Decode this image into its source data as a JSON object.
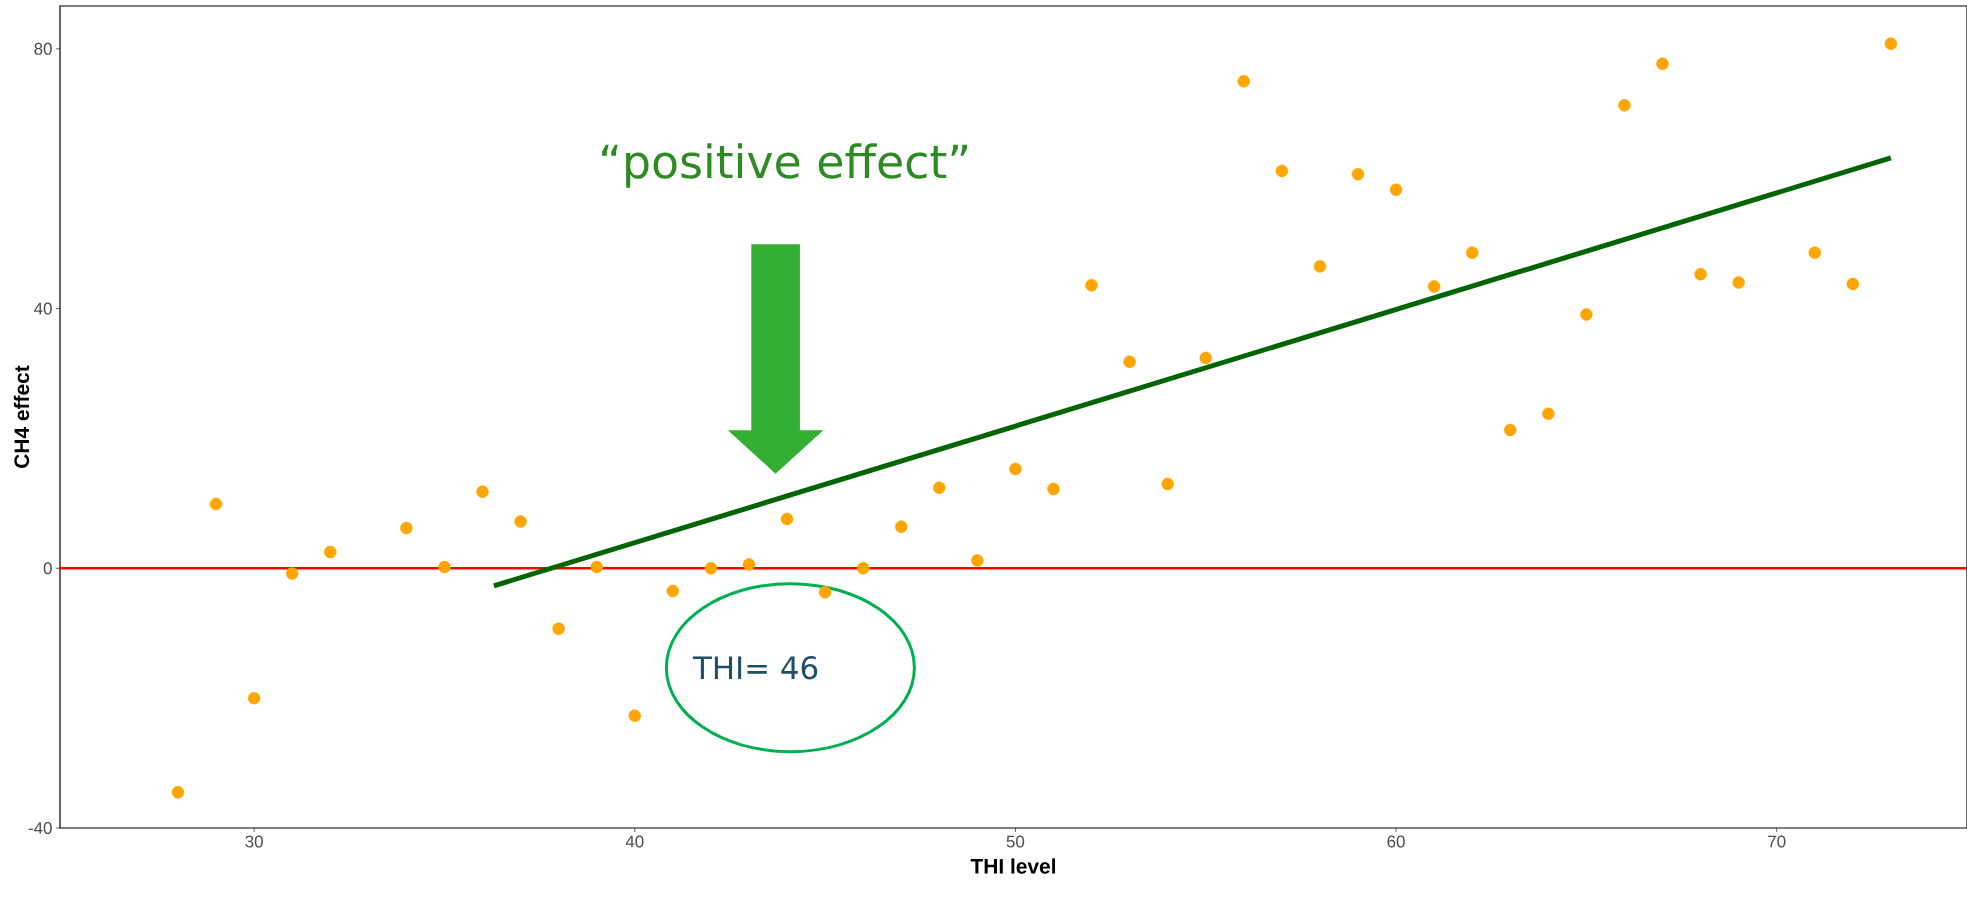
{
  "chart_data": {
    "type": "scatter",
    "xlabel": "THI level",
    "ylabel": "CH4 effect",
    "xlim": [
      24.9,
      75
    ],
    "ylim": [
      -40,
      86.6
    ],
    "xticks": [
      30,
      40,
      50,
      60,
      70
    ],
    "yticks": [
      -40,
      0,
      40,
      80
    ],
    "series": [
      {
        "marker": "circle",
        "color": "#ffa500",
        "x": [
          28,
          29,
          30,
          31,
          32,
          34,
          35,
          36,
          37,
          38,
          39,
          40,
          41,
          42,
          43,
          44,
          45,
          46,
          47,
          48,
          49,
          50,
          51,
          52,
          53,
          54,
          55,
          56,
          57,
          58,
          59,
          60,
          61,
          62,
          63,
          64,
          65,
          66,
          67,
          68,
          69,
          71,
          72,
          73
        ],
        "values": [
          -34.5,
          9.9,
          -20,
          -0.8,
          2.5,
          6.2,
          0.2,
          11.8,
          7.2,
          -9.3,
          0.2,
          -22.7,
          -3.5,
          0,
          0.6,
          7.6,
          -3.7,
          0,
          6.4,
          12.4,
          1.2,
          15.3,
          12.2,
          43.6,
          31.8,
          13,
          32.4,
          75,
          61.2,
          46.5,
          60.7,
          58.3,
          43.4,
          48.6,
          21.3,
          23.8,
          39.1,
          71.3,
          77.7,
          45.3,
          44,
          48.6,
          43.8,
          80.8
        ]
      },
      {
        "type": "line",
        "marker": "none",
        "color": "#006400",
        "x": [
          36.3,
          73
        ],
        "values": [
          -2.7,
          63.2
        ]
      }
    ],
    "ref_lines": [
      {
        "axis": "y",
        "value": 0,
        "color": "#ff0000"
      }
    ],
    "annotations": [
      "“positive effect”",
      "THI= 46"
    ]
  }
}
